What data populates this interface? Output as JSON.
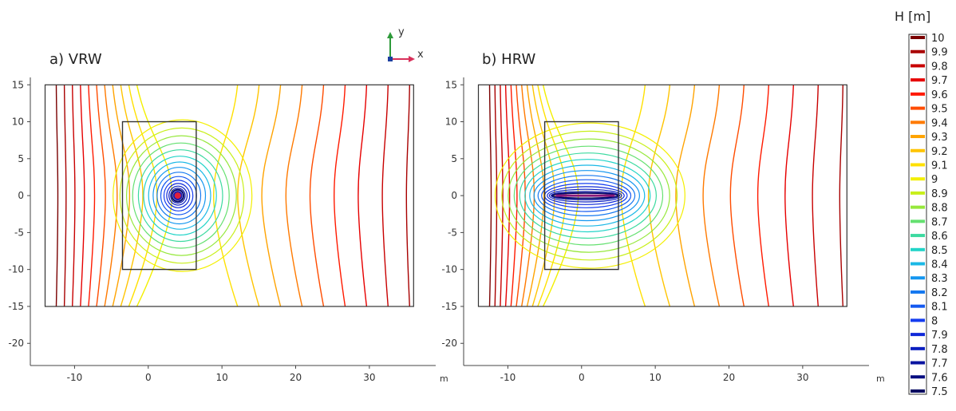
{
  "chart_data": [
    {
      "type": "contour",
      "title": "a) VRW",
      "xlabel": "m",
      "ylabel": "",
      "xlim": [
        -16,
        39
      ],
      "ylim": [
        -23,
        16
      ],
      "xticks": [
        -10,
        0,
        10,
        20,
        30
      ],
      "yticks": [
        -20,
        -15,
        -10,
        -5,
        0,
        5,
        10,
        15
      ],
      "outer_domain": {
        "x": [
          -14,
          36
        ],
        "y": [
          -15,
          15
        ]
      },
      "inner_domain": {
        "x": [
          -3.5,
          6.5
        ],
        "y": [
          -10,
          10
        ]
      },
      "well": {
        "kind": "vertical",
        "x": 4,
        "y": 0
      },
      "source_side_levels": [
        10,
        9.9,
        9.8,
        9.7,
        9.6,
        9.5,
        9.4,
        9.3,
        9.2,
        9.1,
        9.0
      ],
      "far_field_levels": [
        9.1,
        9.2,
        9.3,
        9.4,
        9.5,
        9.6,
        9.7,
        9.8,
        9.9
      ],
      "levels_around_well": [
        9.0,
        8.9,
        8.8,
        8.7,
        8.6,
        8.5,
        8.4,
        8.3,
        8.2,
        8.1,
        8.0,
        7.9,
        7.8,
        7.7,
        7.6,
        7.5
      ]
    },
    {
      "type": "contour",
      "title": "b) HRW",
      "xlabel": "m",
      "ylabel": "",
      "xlim": [
        -16,
        39
      ],
      "ylim": [
        -23,
        16
      ],
      "xticks": [
        -10,
        0,
        10,
        20,
        30
      ],
      "yticks": [
        -20,
        -15,
        -10,
        -5,
        0,
        5,
        10,
        15
      ],
      "outer_domain": {
        "x": [
          -14,
          36
        ],
        "y": [
          -15,
          15
        ]
      },
      "inner_domain": {
        "x": [
          -5,
          5
        ],
        "y": [
          -10,
          10
        ]
      },
      "well": {
        "kind": "horizontal",
        "x": [
          -3.5,
          4.5
        ],
        "y": 0
      },
      "source_side_levels": [
        10,
        9.9,
        9.8,
        9.7,
        9.6,
        9.5,
        9.4,
        9.3,
        9.2,
        9.1,
        9.0
      ],
      "far_field_levels": [
        9.1,
        9.2,
        9.3,
        9.4,
        9.5,
        9.6,
        9.7,
        9.8,
        9.9
      ],
      "levels_around_well": [
        9.0,
        8.9,
        8.8,
        8.7,
        8.6,
        8.5,
        8.4,
        8.3,
        8.2,
        8.1,
        8.0,
        7.9,
        7.8,
        7.7,
        7.6,
        7.5
      ]
    }
  ],
  "axis_triad": {
    "x_label": "x",
    "y_label": "y"
  },
  "colorbar": {
    "title": "H [m]",
    "levels": [
      10,
      9.9,
      9.8,
      9.7,
      9.6,
      9.5,
      9.4,
      9.3,
      9.2,
      9.1,
      9,
      8.9,
      8.8,
      8.7,
      8.6,
      8.5,
      8.4,
      8.3,
      8.2,
      8.1,
      8,
      7.9,
      7.8,
      7.7,
      7.6,
      7.5
    ],
    "colors": [
      "#7a0000",
      "#a80000",
      "#c80000",
      "#e60000",
      "#ff1a00",
      "#ff4c00",
      "#ff7a00",
      "#ffa300",
      "#ffc400",
      "#ffe000",
      "#f3ef00",
      "#c8ef1a",
      "#96e83c",
      "#64e070",
      "#3cdaa0",
      "#22d4c8",
      "#1ab8e6",
      "#1496f0",
      "#1478f0",
      "#1459f0",
      "#143cf0",
      "#0f28d8",
      "#0a1ec0",
      "#0a14a0",
      "#050c80",
      "#020560"
    ]
  }
}
